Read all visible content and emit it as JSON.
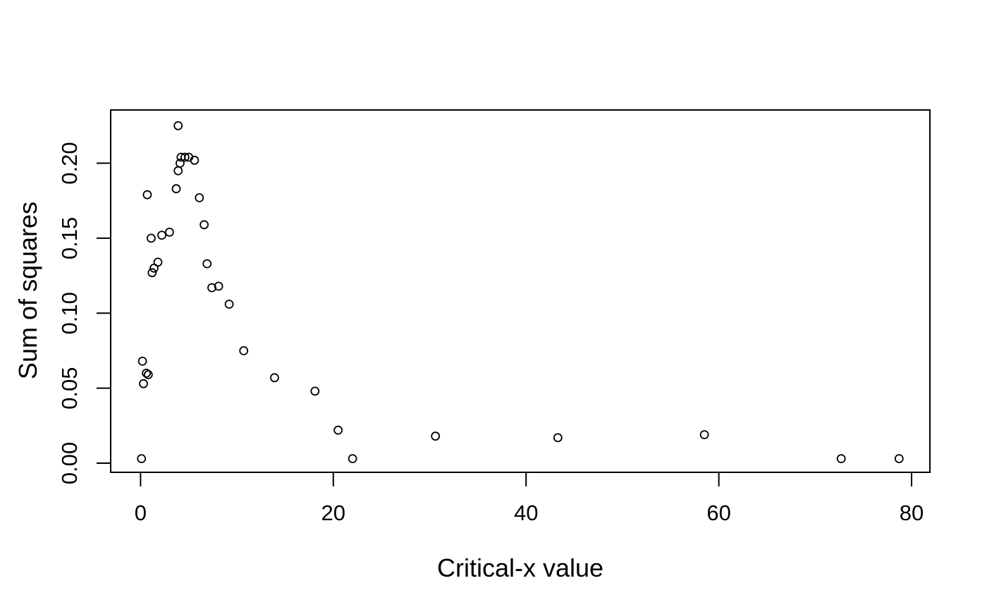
{
  "figure": {
    "background": "#ffffff",
    "foreground": "#000000"
  },
  "chart_data": {
    "type": "scatter",
    "title": "",
    "xlabel": "Critical-x value",
    "ylabel": "Sum of squares",
    "marker": {
      "shape": "open-circle",
      "color": "#000000",
      "fill": "none"
    },
    "grid": false,
    "legend": "none",
    "xlim": [
      -3.1,
      81.9
    ],
    "ylim": [
      -0.0061,
      0.2355
    ],
    "x_ticks": [
      {
        "v": 0,
        "label": "0"
      },
      {
        "v": 20,
        "label": "20"
      },
      {
        "v": 40,
        "label": "40"
      },
      {
        "v": 60,
        "label": "60"
      },
      {
        "v": 80,
        "label": "80"
      }
    ],
    "y_ticks": [
      {
        "v": 0.0,
        "label": "0.00"
      },
      {
        "v": 0.05,
        "label": "0.05"
      },
      {
        "v": 0.1,
        "label": "0.10"
      },
      {
        "v": 0.15,
        "label": "0.15"
      },
      {
        "v": 0.2,
        "label": "0.20"
      }
    ],
    "points": [
      [
        0.1,
        0.003
      ],
      [
        0.2,
        0.068
      ],
      [
        0.3,
        0.053
      ],
      [
        0.6,
        0.06
      ],
      [
        0.8,
        0.059
      ],
      [
        0.7,
        0.179
      ],
      [
        1.1,
        0.15
      ],
      [
        1.2,
        0.127
      ],
      [
        1.4,
        0.13
      ],
      [
        1.8,
        0.134
      ],
      [
        2.2,
        0.152
      ],
      [
        3.0,
        0.154
      ],
      [
        3.7,
        0.183
      ],
      [
        3.9,
        0.195
      ],
      [
        3.9,
        0.225
      ],
      [
        4.1,
        0.2
      ],
      [
        4.2,
        0.204
      ],
      [
        4.6,
        0.204
      ],
      [
        5.0,
        0.204
      ],
      [
        5.6,
        0.202
      ],
      [
        6.1,
        0.177
      ],
      [
        6.6,
        0.159
      ],
      [
        6.9,
        0.133
      ],
      [
        7.4,
        0.117
      ],
      [
        8.1,
        0.118
      ],
      [
        9.2,
        0.106
      ],
      [
        10.7,
        0.075
      ],
      [
        13.9,
        0.057
      ],
      [
        18.1,
        0.048
      ],
      [
        20.5,
        0.022
      ],
      [
        22.0,
        0.003
      ],
      [
        30.6,
        0.018
      ],
      [
        43.3,
        0.017
      ],
      [
        58.5,
        0.019
      ],
      [
        72.7,
        0.003
      ],
      [
        78.7,
        0.003
      ]
    ]
  }
}
